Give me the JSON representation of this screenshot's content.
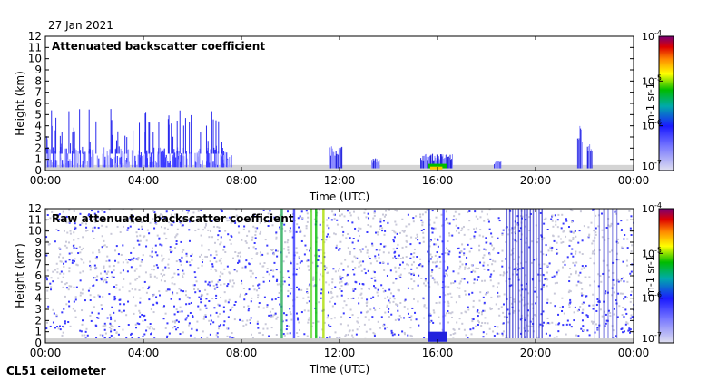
{
  "date": "27 Jan 2021",
  "instrument": "CL51 ceilometer",
  "chart_data": [
    {
      "type": "heatmap",
      "title": "Attenuated backscatter coefficient",
      "xlabel": "Time (UTC)",
      "ylabel": "Height (km)",
      "x_ticks": [
        "00:00",
        "04:00",
        "08:00",
        "12:00",
        "16:00",
        "20:00",
        "00:00"
      ],
      "xlim_hours": [
        0,
        24
      ],
      "ylim_km": [
        0,
        12
      ],
      "y_ticks": [
        0,
        1,
        2,
        3,
        4,
        5,
        6,
        7,
        8,
        9,
        10,
        11,
        12
      ],
      "colorbar": {
        "scale": "log",
        "range": [
          1e-07,
          0.0001
        ],
        "tick_labels": [
          "10-7",
          "10-6",
          "10-5",
          "10-4"
        ],
        "label": "m-1 sr-1"
      },
      "features": [
        {
          "desc": "dense signal below ~2 km with spikes up to ~5.5 km",
          "t_start": 0,
          "t_end": 7.5
        },
        {
          "desc": "cloud base near surface",
          "t_start": 15.5,
          "t_end": 16.5,
          "top_km": 1.5
        },
        {
          "desc": "isolated plume",
          "t_start": 21.7,
          "t_end": 22.2,
          "top_km": 4
        }
      ]
    },
    {
      "type": "heatmap",
      "title": "Raw attenuated backscatter coefficient",
      "xlabel": "Time (UTC)",
      "ylabel": "Height (km)",
      "x_ticks": [
        "00:00",
        "04:00",
        "08:00",
        "12:00",
        "16:00",
        "20:00",
        "00:00"
      ],
      "xlim_hours": [
        0,
        24
      ],
      "ylim_km": [
        0,
        12
      ],
      "y_ticks": [
        0,
        1,
        2,
        3,
        4,
        5,
        6,
        7,
        8,
        9,
        10,
        11,
        12
      ],
      "colorbar": {
        "scale": "log",
        "range": [
          1e-07,
          0.0001
        ],
        "tick_labels": [
          "10-7",
          "10-6",
          "10-5",
          "10-4"
        ],
        "label": "m-1 sr-1"
      },
      "features": [
        {
          "desc": "noise-dominated field",
          "t_start": 0,
          "t_end": 24
        },
        {
          "desc": "high-intensity vertical streaks",
          "t_start": 9.5,
          "t_end": 11.5
        },
        {
          "desc": "dense vertical streak band",
          "t_start": 18.8,
          "t_end": 20.3
        }
      ]
    }
  ],
  "colors": {
    "colormap": [
      "#e0e0f0",
      "#1a1aff",
      "#00bb00",
      "#ffff00",
      "#ff8800",
      "#dd0000",
      "#770077"
    ],
    "background": "#ffffff"
  }
}
